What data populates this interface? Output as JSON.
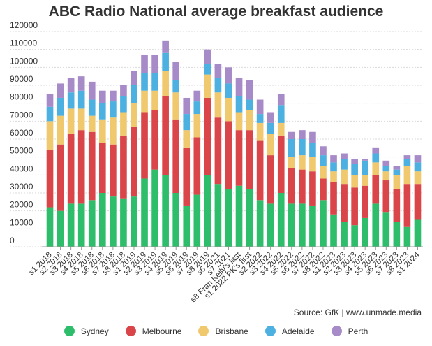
{
  "chart_data": {
    "type": "bar",
    "stacked": true,
    "title": "ABC Radio National average breakfast audience",
    "source": "Source: GfK | www.unmade.media",
    "ylim": [
      0,
      120000
    ],
    "yticks": [
      "0",
      "10000",
      "20000",
      "30000",
      "40000",
      "50000",
      "60000",
      "70000",
      "80000",
      "90000",
      "100000",
      "110000",
      "120000"
    ],
    "grid": true,
    "legend_position": "bottom",
    "categories": [
      "s1 2018",
      "s2 2018",
      "s3 2018",
      "s4 2018",
      "s5 2018",
      "s6 2018",
      "s7 2018",
      "s8 2018",
      "s1 2019",
      "s2 2019",
      "s3 2019",
      "s4 2019",
      "s5 2019",
      "s6 2019",
      "s7 2019",
      "s8 2019",
      "s6 2021",
      "s7 2021",
      "s8 Fran Kelly's last",
      "s1 2022 PK's first",
      "s2 2022",
      "s3 2022",
      "s4 2022",
      "s5 2022",
      "s6 2022",
      "s7 2022",
      "s8 2022",
      "s1 2023",
      "s2 2023",
      "s3 2023",
      "s4 2023",
      "s5 2023",
      "s6 2023",
      "s7 2023",
      "s8 2023",
      "s1 2024"
    ],
    "series": [
      {
        "name": "Sydney",
        "color": "#2ebd6b",
        "values": [
          22000,
          20000,
          24000,
          24000,
          26000,
          30000,
          28000,
          27000,
          28000,
          38000,
          43000,
          40000,
          30000,
          23000,
          29000,
          40000,
          35000,
          32000,
          34000,
          32000,
          26000,
          24000,
          30000,
          24000,
          24000,
          23000,
          26000,
          18000,
          14000,
          12000,
          16000,
          24000,
          19000,
          14000,
          11000,
          15000
        ]
      },
      {
        "name": "Melbourne",
        "color": "#d94549",
        "values": [
          32000,
          37000,
          39000,
          41000,
          38000,
          28000,
          29000,
          35000,
          39000,
          37000,
          33000,
          44000,
          41000,
          32000,
          32000,
          43000,
          37000,
          38000,
          31000,
          33000,
          33000,
          27000,
          32000,
          20000,
          19000,
          19000,
          12000,
          18000,
          21000,
          21000,
          18000,
          16000,
          18000,
          18000,
          24000,
          20000
        ]
      },
      {
        "name": "Brisbane",
        "color": "#f0c86d",
        "values": [
          16000,
          16000,
          14000,
          12000,
          9000,
          13000,
          15000,
          13000,
          13000,
          12000,
          11000,
          14000,
          15000,
          10000,
          13000,
          13000,
          14000,
          13000,
          10000,
          11000,
          10000,
          12000,
          7000,
          6000,
          8000,
          8000,
          7000,
          6000,
          8000,
          7000,
          6000,
          7000,
          5000,
          8000,
          10000,
          7000
        ]
      },
      {
        "name": "Adelaide",
        "color": "#4cb0e0",
        "values": [
          8000,
          10000,
          9000,
          10000,
          9000,
          9000,
          9000,
          9000,
          10000,
          10000,
          10000,
          10000,
          7000,
          9000,
          7000,
          6000,
          8000,
          8000,
          9000,
          6000,
          5000,
          6000,
          10000,
          10000,
          9000,
          8000,
          6000,
          5000,
          6000,
          6000,
          8000,
          5000,
          3000,
          3000,
          4000,
          5000
        ]
      },
      {
        "name": "Perth",
        "color": "#a78ac8",
        "values": [
          7000,
          8000,
          8000,
          8000,
          10000,
          7000,
          6000,
          6000,
          8000,
          10000,
          10000,
          7000,
          10000,
          9000,
          6000,
          8000,
          8000,
          9000,
          10000,
          11000,
          8000,
          6000,
          6000,
          4000,
          5000,
          6000,
          5000,
          4000,
          3000,
          3000,
          1000,
          3000,
          3000,
          2000,
          2000,
          4000
        ]
      }
    ]
  }
}
